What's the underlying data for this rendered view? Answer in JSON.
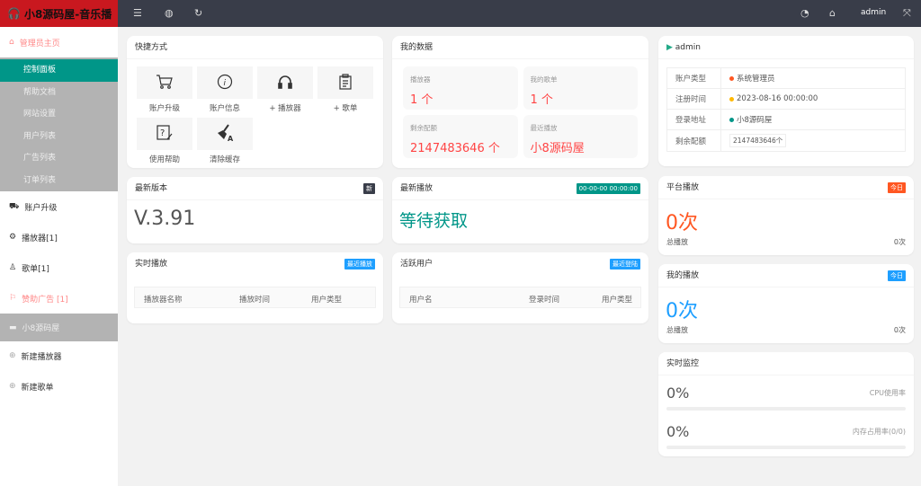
{
  "app": {
    "title": "小8源码屋-音乐播",
    "user": "admin"
  },
  "sidebar": {
    "home": "管理员主页",
    "sub": [
      "控制面板",
      "帮助文档",
      "网站设置",
      "用户列表",
      "广告列表",
      "订单列表"
    ],
    "items": [
      {
        "label": "账户升级",
        "icon": "cart-icon"
      },
      {
        "label": "播放器[1]",
        "icon": "gear-icon"
      },
      {
        "label": "歌单[1]",
        "icon": "user-icon"
      },
      {
        "label": "赞助广告 [1]",
        "icon": "flag-icon"
      }
    ],
    "site": "小8源码屋",
    "actions": [
      "新建播放器",
      "新建歌单"
    ]
  },
  "shortcuts": {
    "title": "快捷方式",
    "items": [
      {
        "label": "账户升级",
        "icon": "cart-icon"
      },
      {
        "label": "账户信息",
        "icon": "info-icon"
      },
      {
        "label": "+ 播放器",
        "icon": "headphones-icon"
      },
      {
        "label": "+ 歌单",
        "icon": "clipboard-icon"
      },
      {
        "label": "使用帮助",
        "icon": "help-icon"
      },
      {
        "label": "清除缓存",
        "icon": "brush-icon"
      }
    ]
  },
  "mydata": {
    "title": "我的数据",
    "cells": [
      {
        "label": "播放器",
        "value": "1 个"
      },
      {
        "label": "我的歌单",
        "value": "1 个"
      },
      {
        "label": "剩余配额",
        "value": "2147483646 个"
      },
      {
        "label": "最近播放",
        "value": "小8源码屋"
      }
    ]
  },
  "profile": {
    "name": "admin",
    "rows": [
      {
        "key": "账户类型",
        "value": "系统管理员",
        "dot": "#ff5722"
      },
      {
        "key": "注册时间",
        "value": "2023-08-16 00:00:00",
        "dot": "#ffb800"
      },
      {
        "key": "登录地址",
        "value": "小8源码屋",
        "dot": "#009688"
      },
      {
        "key": "剩余配额",
        "value": "2147483646个"
      }
    ]
  },
  "version": {
    "title": "最新版本",
    "badge": "新",
    "value": "V.3.91"
  },
  "latest": {
    "title": "最新播放",
    "badge": "00-00-00 00:00:00",
    "value": "等待获取"
  },
  "realtime": {
    "title": "实时播放",
    "badge": "最近播放",
    "columns": [
      "播放器名称",
      "播放时间",
      "用户类型"
    ]
  },
  "active": {
    "title": "活跃用户",
    "badge": "最近登陆",
    "columns": [
      "用户名",
      "登录时间",
      "用户类型"
    ]
  },
  "platform": {
    "title": "平台播放",
    "badge": "今日",
    "value": "0次",
    "total_label": "总播放",
    "total": "0次"
  },
  "myplay": {
    "title": "我的播放",
    "badge": "今日",
    "value": "0次",
    "total_label": "总播放",
    "total": "0次"
  },
  "monitor": {
    "title": "实时监控",
    "cpu": {
      "value": "0%",
      "label": "CPU使用率",
      "percent": 0
    },
    "mem": {
      "value": "0%",
      "label": "内存占用率(0/0)",
      "percent": 0
    }
  },
  "colors": {
    "teal": "#009688",
    "orange": "#ff5722",
    "blue": "#1e9fff",
    "red": "#f44",
    "dark": "#393d49"
  }
}
